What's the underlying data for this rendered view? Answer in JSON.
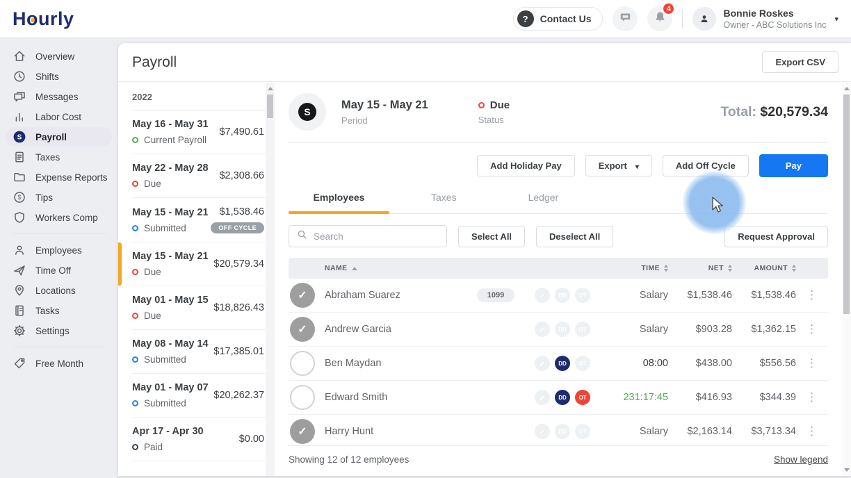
{
  "brand": {
    "part1": "H",
    "part2": "o",
    "part3": "urly"
  },
  "header": {
    "contact_us": "Contact Us",
    "notification_count": "4",
    "user_name": "Bonnie Roskes",
    "user_role": "Owner - ABC Solutions Inc"
  },
  "sidebar": {
    "groups": [
      [
        {
          "label": "Overview",
          "icon": "home-icon"
        },
        {
          "label": "Shifts",
          "icon": "clock-icon"
        },
        {
          "label": "Messages",
          "icon": "messages-icon"
        },
        {
          "label": "Labor Cost",
          "icon": "bar-chart-icon"
        },
        {
          "label": "Payroll",
          "icon": "payroll-coin-icon",
          "active": true
        },
        {
          "label": "Taxes",
          "icon": "document-icon"
        },
        {
          "label": "Expense Reports",
          "icon": "folder-icon"
        },
        {
          "label": "Tips",
          "icon": "coin-icon"
        },
        {
          "label": "Workers Comp",
          "icon": "shield-icon"
        }
      ],
      [
        {
          "label": "Employees",
          "icon": "person-icon"
        },
        {
          "label": "Time Off",
          "icon": "plane-icon"
        },
        {
          "label": "Locations",
          "icon": "map-pin-icon"
        },
        {
          "label": "Tasks",
          "icon": "notebook-icon"
        },
        {
          "label": "Settings",
          "icon": "gear-icon"
        }
      ],
      [
        {
          "label": "Free Month",
          "icon": "tag-icon"
        }
      ]
    ]
  },
  "page": {
    "title": "Payroll",
    "export_csv": "Export CSV"
  },
  "payroll_list": {
    "year": "2022",
    "items": [
      {
        "period": "May 16 - May 31",
        "status": "Current Payroll",
        "status_color": "green",
        "amount": "$7,490.61"
      },
      {
        "period": "May 22 - May 28",
        "status": "Due",
        "status_color": "red",
        "amount": "$2,308.66"
      },
      {
        "period": "May 15 - May 21",
        "status": "Submitted",
        "status_color": "blue",
        "amount": "$1,538.46",
        "badge": "OFF CYCLE"
      },
      {
        "period": "May 15 - May 21",
        "status": "Due",
        "status_color": "red",
        "amount": "$20,579.34",
        "selected": true
      },
      {
        "period": "May 01 - May 15",
        "status": "Due",
        "status_color": "red",
        "amount": "$18,826.43"
      },
      {
        "period": "May 08 - May 14",
        "status": "Submitted",
        "status_color": "blue",
        "amount": "$17,385.01"
      },
      {
        "period": "May 01 - May 07",
        "status": "Submitted",
        "status_color": "blue",
        "amount": "$20,262.37"
      },
      {
        "period": "Apr 17 - Apr 30",
        "status": "Paid",
        "status_color": "dark",
        "amount": "$0.00"
      }
    ]
  },
  "detail": {
    "period": "May 15 - May 21",
    "period_label": "Period",
    "status": "Due",
    "status_label": "Status",
    "total_label": "Total:",
    "total_value": "$20,579.34",
    "buttons": {
      "add_holiday_pay": "Add Holiday Pay",
      "export": "Export",
      "add_off_cycle": "Add Off Cycle",
      "pay": "Pay"
    },
    "tabs": [
      {
        "label": "Employees",
        "active": true
      },
      {
        "label": "Taxes"
      },
      {
        "label": "Ledger"
      }
    ],
    "search_placeholder": "Search",
    "select_all": "Select All",
    "deselect_all": "Deselect All",
    "request_approval": "Request Approval",
    "table": {
      "columns": [
        "NAME",
        "TIME",
        "NET",
        "AMOUNT"
      ],
      "dd_label": "DD",
      "ot_label": "OT",
      "rows": [
        {
          "name": "Abraham Suarez",
          "checked": true,
          "badge": "1099",
          "dd": false,
          "ot": false,
          "time": "Salary",
          "net": "$1,538.46",
          "amount": "$1,538.46"
        },
        {
          "name": "Andrew Garcia",
          "checked": true,
          "dd": false,
          "ot": false,
          "time": "Salary",
          "net": "$903.28",
          "amount": "$1,362.15"
        },
        {
          "name": "Ben Maydan",
          "checked": false,
          "dd": true,
          "ot": false,
          "time": "08:00",
          "net": "$438.00",
          "amount": "$556.56"
        },
        {
          "name": "Edward Smith",
          "checked": false,
          "dd": true,
          "ot": true,
          "time": "231:17:45",
          "time_color": "green",
          "net": "$416.93",
          "amount": "$344.39"
        },
        {
          "name": "Harry Hunt",
          "checked": true,
          "dd": false,
          "ot": false,
          "time": "Salary",
          "net": "$2,163.14",
          "amount": "$3,713.34"
        }
      ]
    },
    "footer": {
      "showing": "Showing 12 of 12 employees",
      "show_legend": "Show legend"
    }
  },
  "colors": {
    "brand_navy": "#1f2d6d",
    "accent_orange": "#f5a623",
    "primary_blue": "#1677f2",
    "status_green": "#4caf50",
    "status_red": "#f44336",
    "status_blue": "#1e88e5",
    "status_paid_dark": "#37474f"
  }
}
